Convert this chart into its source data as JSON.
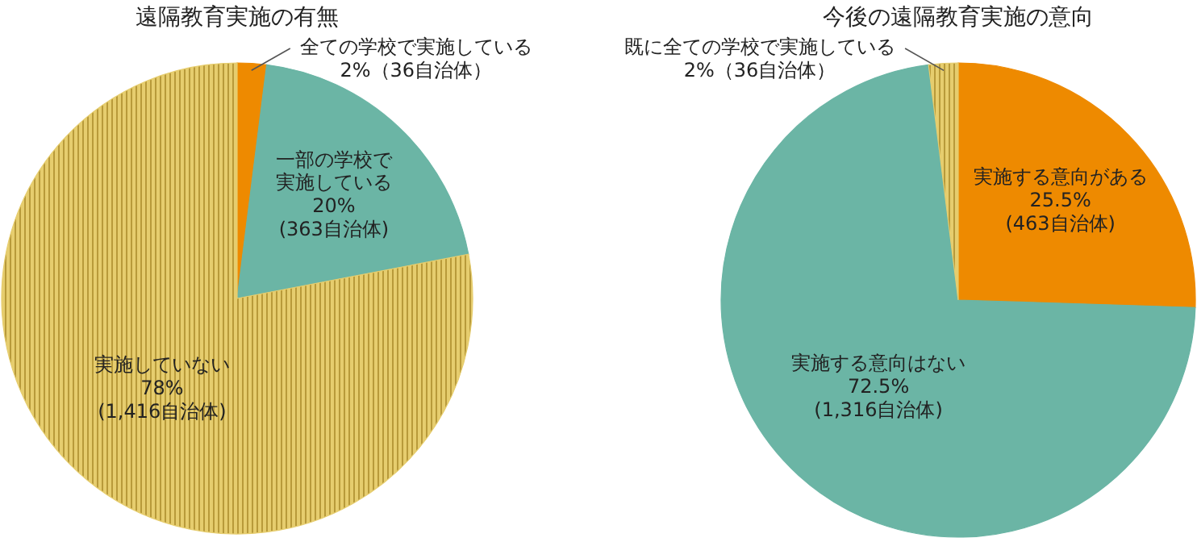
{
  "chart_data": [
    {
      "type": "pie",
      "title": "遠隔教育実施の有無",
      "categories": [
        "全ての学校で実施している",
        "一部の学校で実施している",
        "実施していない"
      ],
      "values": [
        2,
        20,
        78
      ],
      "colors": [
        "#ee8a00",
        "#6bb5a5",
        "#e6cd6e"
      ],
      "value_labels": [
        "2%（36自治体）",
        "20%\n(363自治体)",
        "78%\n(1,416自治体)"
      ]
    },
    {
      "type": "pie",
      "title": "今後の遠隔教育実施の意向",
      "categories": [
        "実施する意向がある",
        "実施する意向はない",
        "既に全ての学校で実施している"
      ],
      "values": [
        25.5,
        72.5,
        2
      ],
      "colors": [
        "#ee8a00",
        "#6bb5a5",
        "#e6cd6e"
      ],
      "value_labels": [
        "25.5%\n(463自治体)",
        "72.5%\n(1,316自治体)",
        "2%（36自治体）"
      ]
    }
  ]
}
